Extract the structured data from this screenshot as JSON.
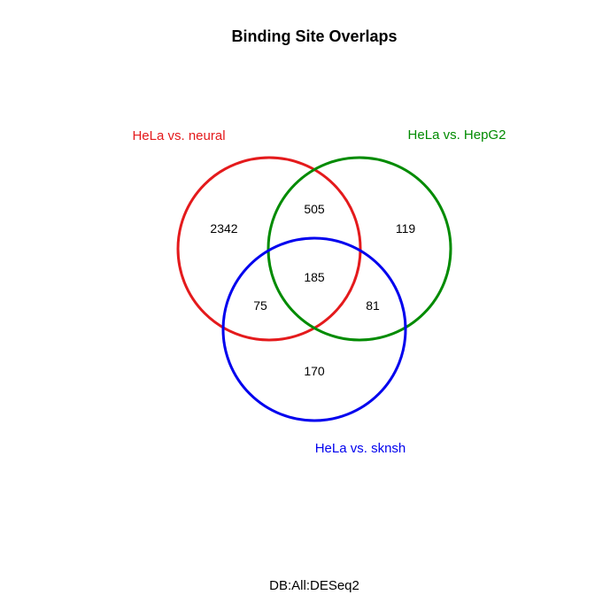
{
  "title": "Binding Site Overlaps",
  "subtitle": "DB:All:DESeq2",
  "sets": [
    {
      "name": "HeLa vs. neural",
      "color": "#e41a1c"
    },
    {
      "name": "HeLa vs. HepG2",
      "color": "#008b00"
    },
    {
      "name": "HeLa vs. sknsh",
      "color": "#0000ee"
    }
  ],
  "regions": {
    "neural_only": "2342",
    "hepg2_only": "119",
    "sknsh_only": "170",
    "neural_hepg2": "505",
    "neural_sknsh": "75",
    "hepg2_sknsh": "81",
    "all_three": "185"
  }
}
